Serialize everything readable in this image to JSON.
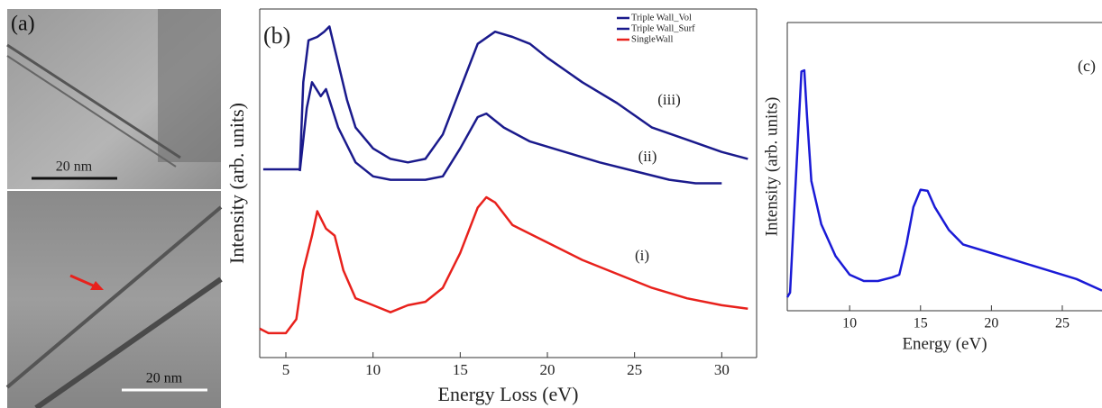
{
  "panel_a": {
    "label": "(a)",
    "scale_bars": [
      "20 nm",
      "20 nm"
    ]
  },
  "chart_data": [
    {
      "type": "line",
      "panel_label": "(b)",
      "x_label": "Energy Loss (eV)",
      "y_label": "Intensity (arb. units)",
      "xlim": [
        3.5,
        32
      ],
      "xticks": [
        5,
        10,
        15,
        20,
        25,
        30
      ],
      "ylim": [
        0,
        100
      ],
      "annotations": [
        "(iii)",
        "(ii)",
        "(i)"
      ],
      "series": [
        {
          "name": "Triple Wall_Vol",
          "color": "#1a1a8c",
          "x": [
            3.7,
            5.5,
            5.8,
            6.0,
            6.3,
            6.8,
            7.2,
            7.5,
            8,
            8.5,
            9,
            10,
            11,
            12,
            13,
            14,
            15,
            16,
            17,
            18,
            19,
            20,
            22,
            24,
            26,
            28,
            30,
            31.5
          ],
          "values": [
            54,
            54,
            54,
            79,
            91,
            92,
            93.5,
            95,
            84.5,
            74,
            66,
            60,
            57,
            56,
            57,
            64,
            77,
            90,
            93.5,
            92,
            90,
            86,
            79,
            73,
            66,
            62.5,
            59,
            57
          ]
        },
        {
          "name": "Triple Wall_Surf",
          "color": "#1a1a8c",
          "x": [
            5.8,
            6.2,
            6.5,
            7,
            7.3,
            8,
            9,
            10,
            11,
            12,
            13,
            14,
            15,
            16,
            16.5,
            17.5,
            19,
            21,
            23,
            25,
            27,
            28.5,
            30
          ],
          "values": [
            53.5,
            71.6,
            79,
            75,
            77,
            66,
            56,
            52,
            51,
            51,
            51,
            52,
            60,
            69,
            70,
            66,
            62,
            59,
            56,
            53.5,
            51,
            50,
            50
          ]
        },
        {
          "name": "SingleWall",
          "color": "#e8211c",
          "x": [
            3.5,
            4,
            5,
            5.6,
            6,
            6.5,
            6.8,
            7.3,
            7.8,
            8.3,
            9,
            10,
            11,
            12,
            13,
            14,
            15,
            16,
            16.5,
            17,
            18,
            20,
            22,
            24,
            26,
            28,
            30,
            31.5
          ],
          "values": [
            8.3,
            7,
            7,
            11,
            25,
            35,
            42,
            37,
            35,
            25,
            17,
            15,
            13,
            15,
            16,
            20,
            30,
            43,
            46,
            44.5,
            38,
            33,
            28,
            24,
            20,
            17,
            15,
            14
          ]
        }
      ]
    },
    {
      "type": "line",
      "panel_label": "(c)",
      "x_label": "Energy (eV)",
      "y_label": "Intensity (arb. units)",
      "xlim": [
        5.6,
        27.8
      ],
      "xticks": [
        10,
        15,
        20,
        25
      ],
      "ylim": [
        0,
        100
      ],
      "series": [
        {
          "color": "#1a1ad6",
          "x": [
            5.6,
            5.8,
            6.2,
            6.6,
            6.8,
            7,
            7.3,
            8,
            9,
            10,
            11,
            12,
            13,
            13.5,
            14,
            14.5,
            15,
            15.5,
            16,
            17,
            18,
            20,
            22,
            24,
            26,
            27.8
          ],
          "values": [
            4.7,
            6.3,
            45,
            83,
            83.4,
            67,
            45,
            30,
            19,
            12.5,
            10.3,
            10.3,
            11.6,
            12.5,
            23,
            36,
            42,
            41.6,
            36,
            28,
            23,
            20,
            17,
            14,
            11,
            7
          ]
        }
      ]
    }
  ]
}
